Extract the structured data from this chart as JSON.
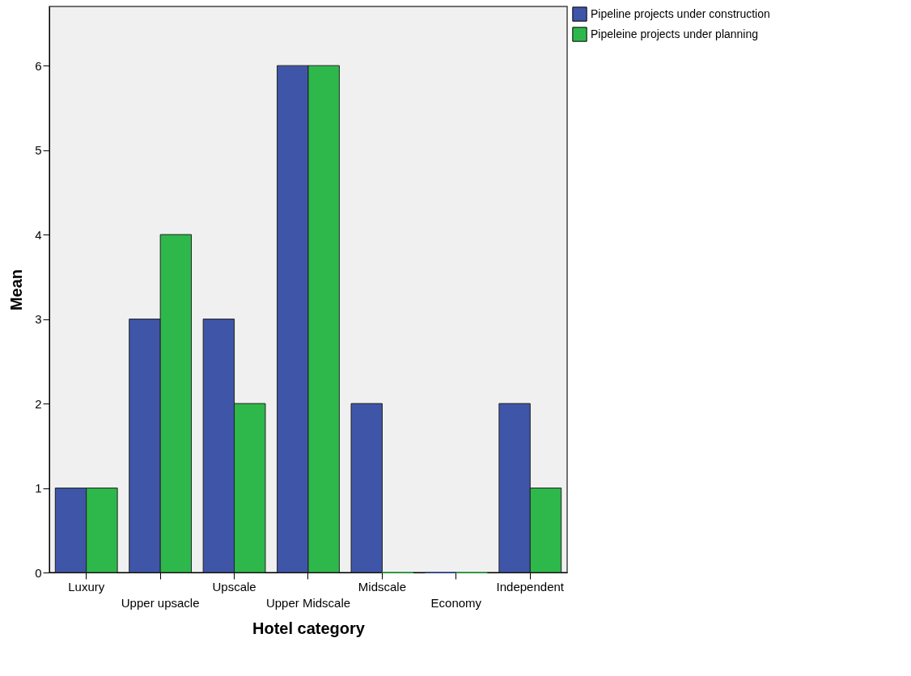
{
  "chart_data": {
    "type": "bar",
    "xlabel": "Hotel category",
    "ylabel": "Mean",
    "categories": [
      "Luxury",
      "Upper upsacle",
      "Upscale",
      "Upper Midscale",
      "Midscale",
      "Economy",
      "Independent"
    ],
    "series": [
      {
        "name": "Pipeline projects under construction",
        "color": "#3f55a8",
        "values": [
          1,
          3,
          3,
          6,
          2,
          0,
          2
        ]
      },
      {
        "name": "Pipeleine projects under planning",
        "color": "#2eb84b",
        "values": [
          1,
          4,
          2,
          6,
          0,
          0,
          1
        ]
      }
    ],
    "ylim": [
      0,
      6.7
    ],
    "yticks": [
      0,
      1,
      2,
      3,
      4,
      5,
      6
    ],
    "grid": false,
    "legend": "top right"
  }
}
